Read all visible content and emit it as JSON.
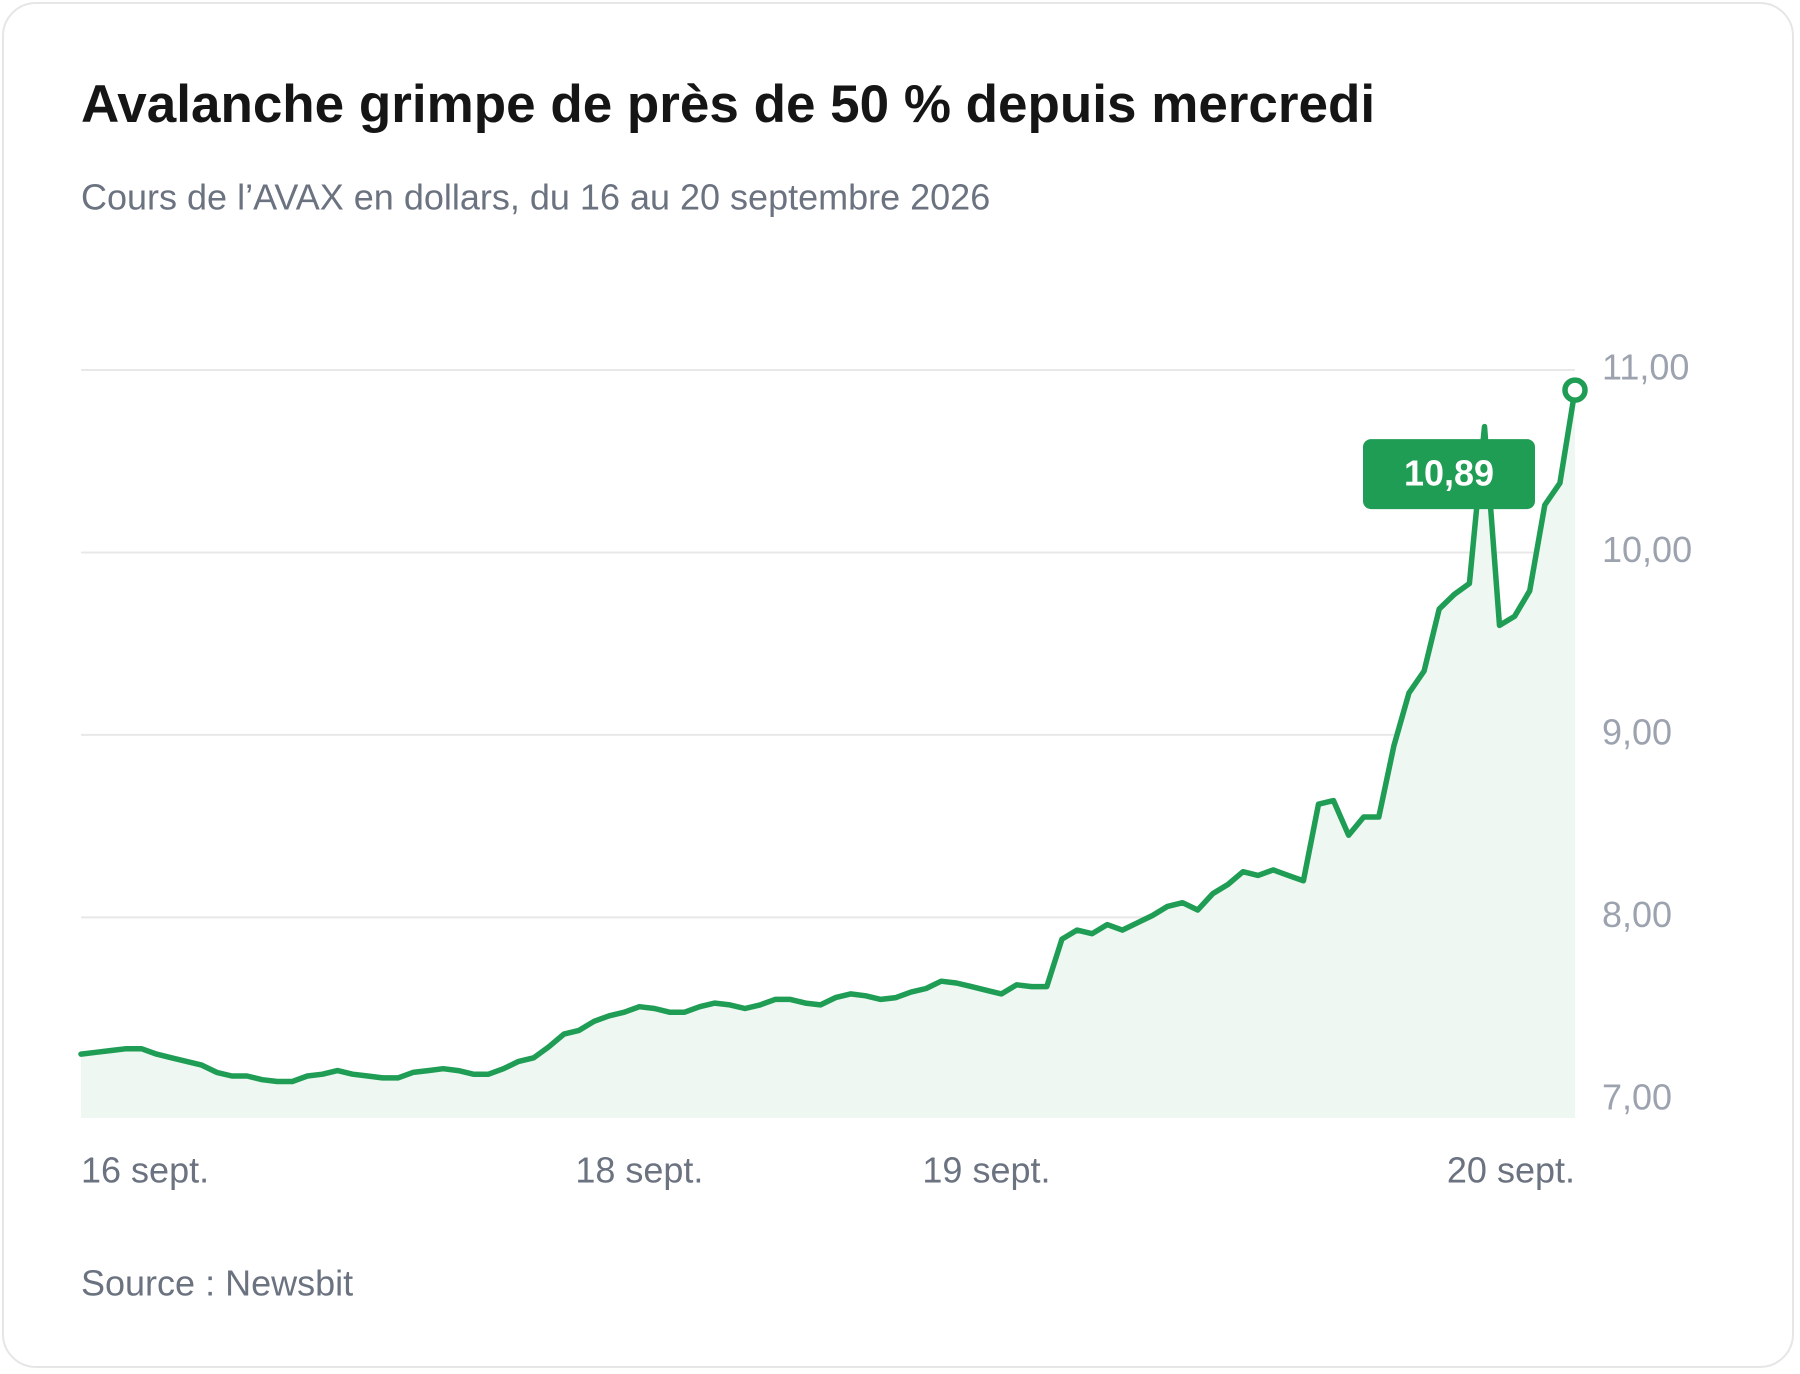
{
  "chart_data": {
    "type": "line",
    "title": "Avalanche grimpe de près de 50 % depuis mercredi",
    "subtitle": "Cours de l’AVAX en dollars, du 16 au 20 septembre 2026",
    "source": "Source : Newsbit",
    "color": "#1f9d55",
    "area_color": "#eef7f1",
    "grid": true,
    "ylim": [
      6.9,
      11
    ],
    "yticks": [
      {
        "value": 7,
        "label": "7,00"
      },
      {
        "value": 8,
        "label": "8,00"
      },
      {
        "value": 9,
        "label": "9,00"
      },
      {
        "value": 10,
        "label": "10,00"
      },
      {
        "value": 11,
        "label": "11,00"
      }
    ],
    "categories": [
      "16 sept.",
      null,
      null,
      null,
      null,
      null,
      null,
      null,
      null,
      null,
      null,
      null,
      null,
      null,
      null,
      null,
      null,
      null,
      null,
      null,
      null,
      null,
      null,
      null,
      null,
      null,
      null,
      null,
      null,
      null,
      null,
      null,
      null,
      null,
      null,
      null,
      null,
      "18 sept.",
      null,
      null,
      null,
      null,
      null,
      null,
      null,
      null,
      null,
      null,
      null,
      null,
      null,
      null,
      null,
      null,
      null,
      null,
      null,
      null,
      null,
      null,
      "19 sept.",
      null,
      null,
      null,
      null,
      null,
      null,
      null,
      null,
      null,
      null,
      null,
      null,
      null,
      null,
      null,
      null,
      null,
      null,
      null,
      null,
      null,
      null,
      null,
      null,
      null,
      null,
      null,
      null,
      null,
      null,
      null,
      null,
      null,
      null,
      null,
      null,
      null,
      null,
      "20 sept."
    ],
    "values": [
      7.25,
      7.26,
      7.27,
      7.28,
      7.28,
      7.25,
      7.23,
      7.21,
      7.19,
      7.15,
      7.13,
      7.13,
      7.11,
      7.1,
      7.1,
      7.13,
      7.14,
      7.16,
      7.14,
      7.13,
      7.12,
      7.12,
      7.15,
      7.16,
      7.17,
      7.16,
      7.14,
      7.14,
      7.17,
      7.21,
      7.23,
      7.29,
      7.36,
      7.38,
      7.43,
      7.46,
      7.48,
      7.51,
      7.5,
      7.48,
      7.48,
      7.51,
      7.53,
      7.52,
      7.5,
      7.52,
      7.55,
      7.55,
      7.53,
      7.52,
      7.56,
      7.58,
      7.57,
      7.55,
      7.56,
      7.59,
      7.61,
      7.65,
      7.64,
      7.62,
      7.6,
      7.58,
      7.63,
      7.62,
      7.62,
      7.88,
      7.93,
      7.91,
      7.96,
      7.93,
      7.97,
      8.01,
      8.06,
      8.08,
      8.04,
      8.13,
      8.18,
      8.25,
      8.23,
      8.26,
      8.23,
      8.2,
      8.62,
      8.64,
      8.45,
      8.55,
      8.55,
      8.94,
      9.23,
      9.35,
      9.69,
      9.77,
      9.83,
      10.69,
      9.6,
      9.65,
      9.79,
      10.26,
      10.38,
      10.89
    ],
    "value_labels": [
      null,
      null,
      null,
      null,
      null,
      null,
      null,
      null,
      null,
      null,
      null,
      null,
      null,
      null,
      null,
      null,
      null,
      null,
      null,
      null,
      null,
      null,
      null,
      null,
      null,
      null,
      null,
      null,
      null,
      null,
      null,
      null,
      null,
      null,
      null,
      null,
      null,
      null,
      null,
      null,
      null,
      null,
      null,
      null,
      null,
      null,
      null,
      null,
      null,
      null,
      null,
      null,
      null,
      null,
      null,
      null,
      null,
      null,
      null,
      null,
      null,
      null,
      null,
      null,
      null,
      null,
      null,
      null,
      null,
      null,
      null,
      null,
      null,
      null,
      null,
      null,
      null,
      null,
      null,
      null,
      null,
      null,
      null,
      null,
      null,
      null,
      null,
      null,
      null,
      null,
      null,
      null,
      null,
      null,
      null,
      null,
      null,
      null,
      null,
      "10,89"
    ]
  }
}
